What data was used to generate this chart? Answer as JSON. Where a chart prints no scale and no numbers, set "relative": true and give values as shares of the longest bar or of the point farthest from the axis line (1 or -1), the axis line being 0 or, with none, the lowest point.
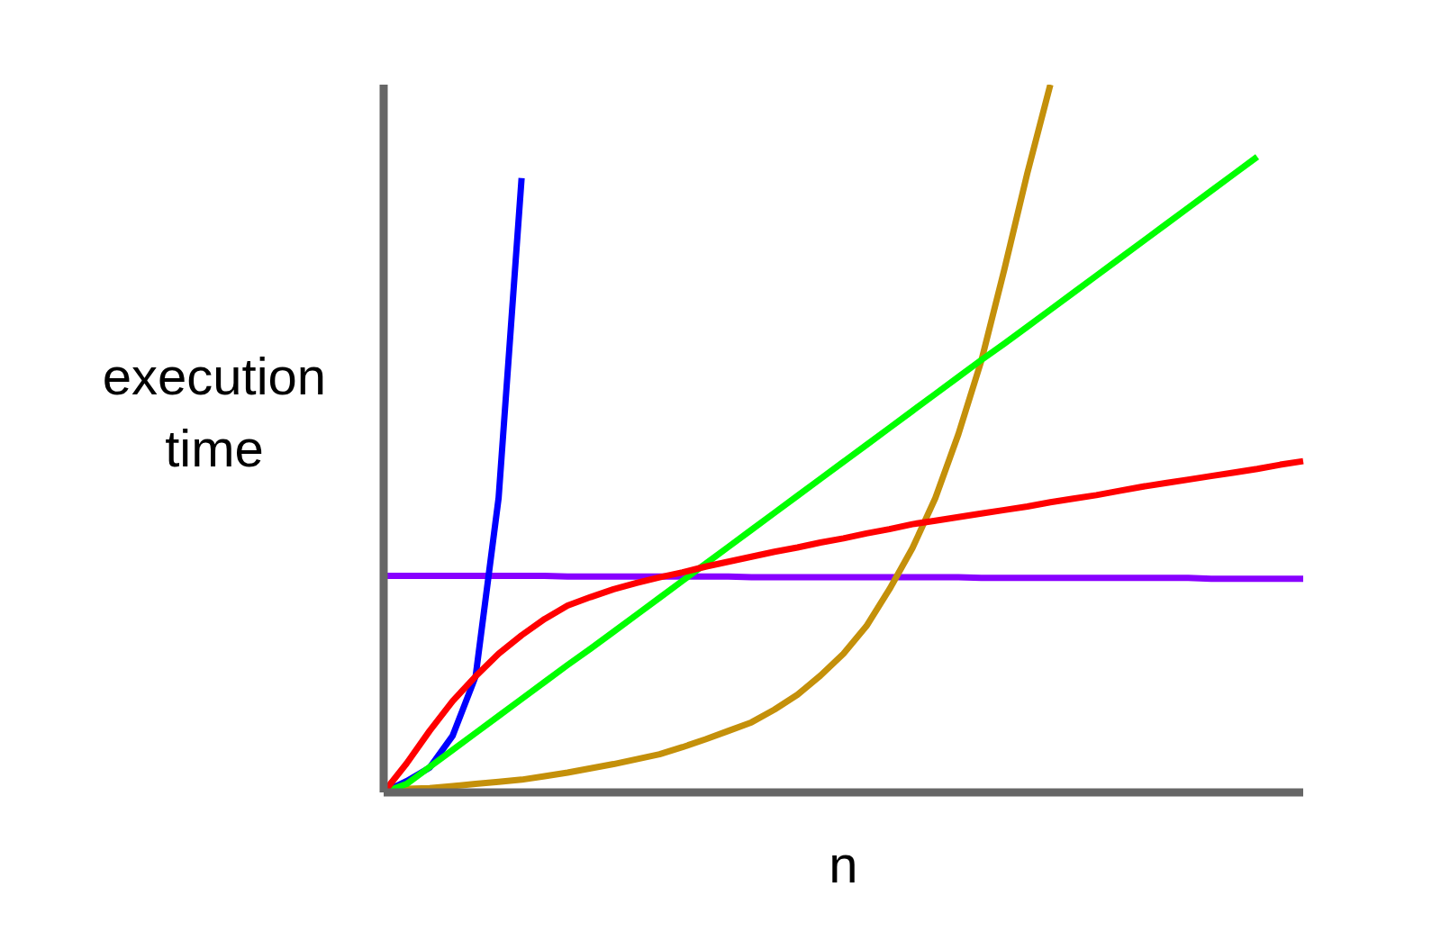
{
  "chart_data": {
    "type": "line",
    "relative": true,
    "xlabel": "n",
    "ylabel": "execution time",
    "marker": "none",
    "line_style": "solid",
    "categories": [
      null,
      null,
      null,
      null,
      null,
      null,
      null,
      null,
      null,
      null,
      null,
      null,
      null,
      null,
      null,
      null,
      null,
      null,
      null,
      null,
      null,
      null,
      null,
      null,
      null,
      null,
      null,
      null,
      null,
      null,
      null,
      null,
      null,
      null,
      null,
      null,
      null,
      null,
      null,
      null,
      null
    ],
    "series": [
      {
        "color": "#8800ff",
        "values": [
          0.306,
          0.306,
          0.306,
          0.306,
          0.306,
          0.306,
          0.306,
          0.306,
          0.305,
          0.305,
          0.305,
          0.305,
          0.305,
          0.305,
          0.305,
          0.305,
          0.304,
          0.304,
          0.304,
          0.304,
          0.304,
          0.304,
          0.304,
          0.304,
          0.304,
          0.304,
          0.303,
          0.303,
          0.303,
          0.303,
          0.303,
          0.303,
          0.303,
          0.303,
          0.303,
          0.303,
          0.302,
          0.302,
          0.302,
          0.302,
          0.302
        ]
      },
      {
        "color": "#c4900a",
        "values": [
          0.005,
          0.005,
          0.006,
          0.009,
          0.012,
          0.015,
          0.018,
          0.023,
          0.028,
          0.034,
          0.04,
          0.047,
          0.054,
          0.064,
          0.075,
          0.087,
          0.099,
          0.117,
          0.138,
          0.165,
          0.196,
          0.235,
          0.287,
          0.345,
          0.416,
          0.506,
          0.61,
          0.739,
          0.875,
          1,
          null,
          null,
          null,
          null,
          null,
          null,
          null,
          null,
          null,
          null,
          null
        ]
      },
      {
        "color": "#0000ff",
        "values": [
          0,
          0.016,
          0.035,
          0.08,
          0.164,
          0.416,
          0.868,
          null,
          null,
          null,
          null,
          null,
          null,
          null,
          null,
          null,
          null,
          null,
          null,
          null,
          null,
          null,
          null,
          null,
          null,
          null,
          null,
          null,
          null,
          null,
          null,
          null,
          null,
          null,
          null,
          null,
          null,
          null,
          null,
          null,
          null
        ]
      },
      {
        "color": "#00ff00",
        "values": [
          0,
          0.012,
          0.036,
          0.06,
          0.084,
          0.108,
          0.132,
          0.156,
          0.18,
          0.203,
          0.227,
          0.251,
          0.275,
          0.299,
          0.323,
          0.347,
          0.371,
          0.395,
          0.419,
          0.443,
          0.467,
          0.491,
          0.515,
          0.539,
          0.563,
          0.587,
          0.611,
          0.634,
          0.658,
          0.682,
          0.706,
          0.73,
          0.754,
          0.778,
          0.802,
          0.826,
          0.85,
          0.874,
          0.898,
          null,
          null
        ]
      },
      {
        "color": "#ff0000",
        "values": [
          0,
          0.041,
          0.087,
          0.129,
          0.164,
          0.196,
          0.222,
          0.245,
          0.264,
          0.276,
          0.287,
          0.296,
          0.304,
          0.311,
          0.319,
          0.326,
          0.333,
          0.34,
          0.346,
          0.353,
          0.359,
          0.366,
          0.372,
          0.379,
          0.384,
          0.389,
          0.394,
          0.399,
          0.404,
          0.41,
          0.415,
          0.42,
          0.426,
          0.432,
          0.437,
          0.442,
          0.447,
          0.452,
          0.457,
          0.463,
          0.468
        ]
      }
    ]
  }
}
